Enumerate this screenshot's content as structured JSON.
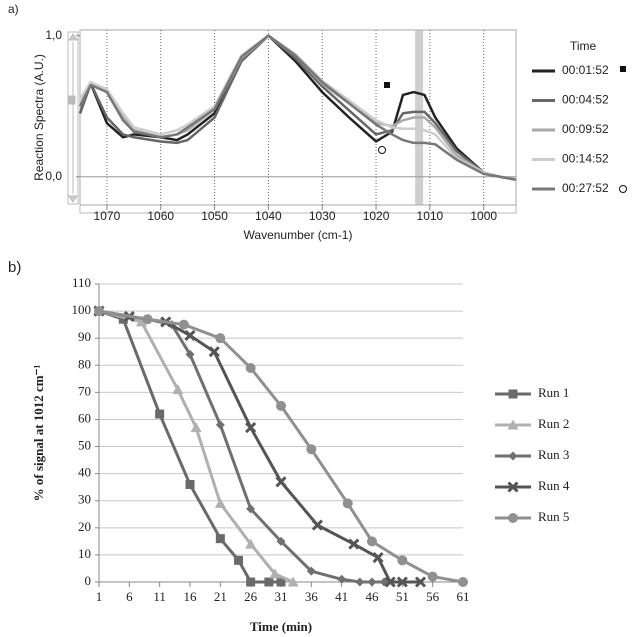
{
  "chart_data": [
    {
      "type": "line",
      "label": "a)",
      "xlabel": "Wavenumber (cm-1)",
      "ylabel": "Reaction Spectra (A.U.)",
      "legend_title": "Time",
      "grid": "x",
      "highlight_x": 1012,
      "xlim": [
        1075,
        994
      ],
      "xticks": [
        1070,
        1060,
        1050,
        1040,
        1030,
        1020,
        1010,
        1000
      ],
      "ylim": [
        -0.2,
        1.04
      ],
      "yticks": [
        {
          "value": 0,
          "label": "0,0"
        },
        {
          "value": 1,
          "label": "1,0"
        }
      ],
      "x": [
        1075,
        1073,
        1070,
        1067,
        1065,
        1060,
        1057,
        1055,
        1050,
        1045,
        1040,
        1035,
        1030,
        1025,
        1020,
        1017,
        1015,
        1013,
        1011,
        1009,
        1005,
        1000,
        997,
        994
      ],
      "series": [
        {
          "name": "00:01:52",
          "color": "#222222",
          "values": [
            0.45,
            0.66,
            0.38,
            0.28,
            0.3,
            0.28,
            0.26,
            0.3,
            0.45,
            0.82,
            1.0,
            0.82,
            0.6,
            0.42,
            0.25,
            0.32,
            0.58,
            0.6,
            0.58,
            0.42,
            0.2,
            0.03,
            0.0,
            -0.02
          ]
        },
        {
          "name": "00:04:52",
          "color": "#666666",
          "values": [
            0.45,
            0.66,
            0.42,
            0.3,
            0.28,
            0.25,
            0.24,
            0.26,
            0.42,
            0.82,
            1.0,
            0.84,
            0.64,
            0.47,
            0.3,
            0.33,
            0.45,
            0.46,
            0.46,
            0.38,
            0.18,
            0.03,
            0.0,
            -0.02
          ]
        },
        {
          "name": "00:09:52",
          "color": "#a8a8a8",
          "values": [
            0.5,
            0.67,
            0.6,
            0.42,
            0.33,
            0.28,
            0.3,
            0.33,
            0.48,
            0.84,
            1.0,
            0.86,
            0.66,
            0.52,
            0.38,
            0.36,
            0.4,
            0.42,
            0.42,
            0.35,
            0.15,
            0.03,
            0.0,
            -0.02
          ]
        },
        {
          "name": "00:14:52",
          "color": "#cccccc",
          "values": [
            0.55,
            0.67,
            0.62,
            0.45,
            0.35,
            0.3,
            0.33,
            0.37,
            0.5,
            0.86,
            1.0,
            0.87,
            0.68,
            0.54,
            0.4,
            0.35,
            0.34,
            0.34,
            0.33,
            0.3,
            0.13,
            0.03,
            0.0,
            -0.02
          ]
        },
        {
          "name": "00:27:52",
          "color": "#777777",
          "values": [
            0.5,
            0.65,
            0.6,
            0.4,
            0.32,
            0.28,
            0.3,
            0.35,
            0.48,
            0.85,
            1.0,
            0.86,
            0.67,
            0.52,
            0.37,
            0.3,
            0.26,
            0.24,
            0.24,
            0.23,
            0.12,
            0.02,
            0.0,
            -0.02
          ]
        }
      ]
    },
    {
      "type": "line",
      "label": "b)",
      "xlabel": "Time (min)",
      "ylabel": "% of signal at 1012 cm⁻¹",
      "grid": "y",
      "xlim": [
        1,
        61
      ],
      "xticks": [
        1,
        6,
        11,
        16,
        21,
        26,
        31,
        36,
        41,
        46,
        51,
        56,
        61
      ],
      "ylim": [
        0,
        110
      ],
      "yticks": [
        0,
        10,
        20,
        30,
        40,
        50,
        60,
        70,
        80,
        90,
        100,
        110
      ],
      "series": [
        {
          "name": "Run 1",
          "color": "#6a6a6a",
          "marker": "square",
          "x": [
            1,
            5,
            11,
            16,
            21,
            24,
            26,
            29,
            31
          ],
          "values": [
            100,
            97,
            62,
            36,
            16,
            8,
            0,
            0,
            0
          ]
        },
        {
          "name": "Run 2",
          "color": "#b0b0b0",
          "marker": "triangle",
          "x": [
            1,
            8,
            14,
            17,
            21,
            26,
            30,
            33
          ],
          "values": [
            100,
            96,
            71,
            57,
            29,
            14,
            3,
            0
          ]
        },
        {
          "name": "Run 3",
          "color": "#707070",
          "marker": "diamond",
          "x": [
            1,
            9,
            13,
            16,
            21,
            26,
            31,
            36,
            41,
            44,
            46,
            48
          ],
          "values": [
            100,
            97,
            95,
            84,
            58,
            27,
            15,
            4,
            1,
            0,
            0,
            0
          ]
        },
        {
          "name": "Run 4",
          "color": "#555555",
          "marker": "x",
          "x": [
            1,
            6,
            12,
            16,
            20,
            26,
            31,
            37,
            43,
            47,
            49,
            51,
            54
          ],
          "values": [
            100,
            98,
            96,
            91,
            85,
            57,
            37,
            21,
            14,
            9,
            0,
            0,
            0
          ]
        },
        {
          "name": "Run 5",
          "color": "#909090",
          "marker": "circle",
          "x": [
            1,
            9,
            15,
            21,
            26,
            31,
            36,
            42,
            46,
            51,
            56,
            61
          ],
          "values": [
            100,
            97,
            95,
            90,
            79,
            65,
            49,
            29,
            15,
            8,
            2,
            0
          ]
        }
      ]
    }
  ]
}
